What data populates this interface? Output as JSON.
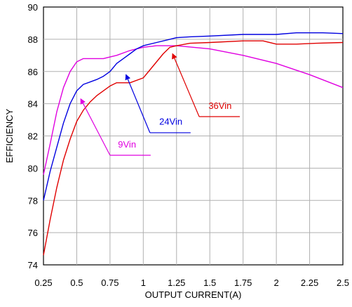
{
  "chart_data": {
    "type": "line",
    "xlabel": "OUTPUT CURRENT(A)",
    "ylabel": "EFFICIENCY",
    "xlim": [
      0.25,
      2.5
    ],
    "ylim": [
      74,
      90
    ],
    "xticks": [
      0.25,
      0.5,
      0.75,
      1,
      1.25,
      1.5,
      1.75,
      2,
      2.25,
      2.5
    ],
    "xtick_labels": [
      "0.25",
      "0.5",
      "0.75",
      "1",
      "1.25",
      "1.5",
      "1.75",
      "2",
      "2.25",
      "2.5"
    ],
    "yticks": [
      74,
      76,
      78,
      80,
      82,
      84,
      86,
      88,
      90
    ],
    "ytick_labels": [
      "74",
      "76",
      "78",
      "80",
      "82",
      "84",
      "86",
      "88",
      "90"
    ],
    "grid": true,
    "series": [
      {
        "name": "9Vin",
        "color": "#e000e0",
        "x": [
          0.25,
          0.3,
          0.35,
          0.4,
          0.45,
          0.5,
          0.55,
          0.6,
          0.7,
          0.75,
          0.8,
          0.9,
          1.0,
          1.1,
          1.25,
          1.5,
          1.75,
          2.0,
          2.25,
          2.5
        ],
        "y": [
          79.6,
          81.5,
          83.5,
          85.0,
          86.0,
          86.6,
          86.8,
          86.8,
          86.8,
          86.9,
          87.0,
          87.3,
          87.5,
          87.6,
          87.6,
          87.4,
          87.0,
          86.5,
          85.8,
          85.0
        ]
      },
      {
        "name": "24Vin",
        "color": "#0000e0",
        "x": [
          0.25,
          0.3,
          0.35,
          0.4,
          0.45,
          0.5,
          0.55,
          0.6,
          0.65,
          0.7,
          0.75,
          0.8,
          0.85,
          0.9,
          0.95,
          1.0,
          1.1,
          1.2,
          1.25,
          1.35,
          1.5,
          1.75,
          2.0,
          2.15,
          2.35,
          2.5
        ],
        "y": [
          78.0,
          79.8,
          81.3,
          82.8,
          84.0,
          84.8,
          85.2,
          85.35,
          85.5,
          85.7,
          86.0,
          86.5,
          86.8,
          87.1,
          87.4,
          87.6,
          87.8,
          88.0,
          88.1,
          88.15,
          88.2,
          88.3,
          88.3,
          88.4,
          88.4,
          88.35
        ]
      },
      {
        "name": "36Vin",
        "color": "#e00000",
        "x": [
          0.25,
          0.3,
          0.35,
          0.4,
          0.45,
          0.5,
          0.55,
          0.6,
          0.65,
          0.7,
          0.75,
          0.8,
          0.9,
          1.0,
          1.05,
          1.1,
          1.15,
          1.2,
          1.25,
          1.35,
          1.5,
          1.75,
          1.9,
          2.0,
          2.15,
          2.3,
          2.5
        ],
        "y": [
          74.6,
          76.8,
          78.8,
          80.5,
          81.8,
          82.9,
          83.6,
          84.1,
          84.5,
          84.8,
          85.1,
          85.3,
          85.3,
          85.6,
          86.1,
          86.6,
          87.1,
          87.5,
          87.6,
          87.75,
          87.8,
          87.9,
          87.9,
          87.7,
          87.7,
          87.75,
          87.8
        ]
      }
    ],
    "annotations": [
      {
        "text": "9Vin",
        "series": "9Vin",
        "arrow_to": [
          0.53,
          84.3
        ],
        "elbow": [
          0.75,
          80.8
        ],
        "label_at": [
          0.81,
          81.2
        ]
      },
      {
        "text": "24Vin",
        "series": "24Vin",
        "arrow_to": [
          0.87,
          85.8
        ],
        "elbow": [
          1.05,
          82.2
        ],
        "label_at": [
          1.12,
          82.6
        ]
      },
      {
        "text": "36Vin",
        "series": "36Vin",
        "arrow_to": [
          1.22,
          87.1
        ],
        "elbow": [
          1.42,
          83.2
        ],
        "label_at": [
          1.49,
          83.6
        ]
      }
    ]
  }
}
